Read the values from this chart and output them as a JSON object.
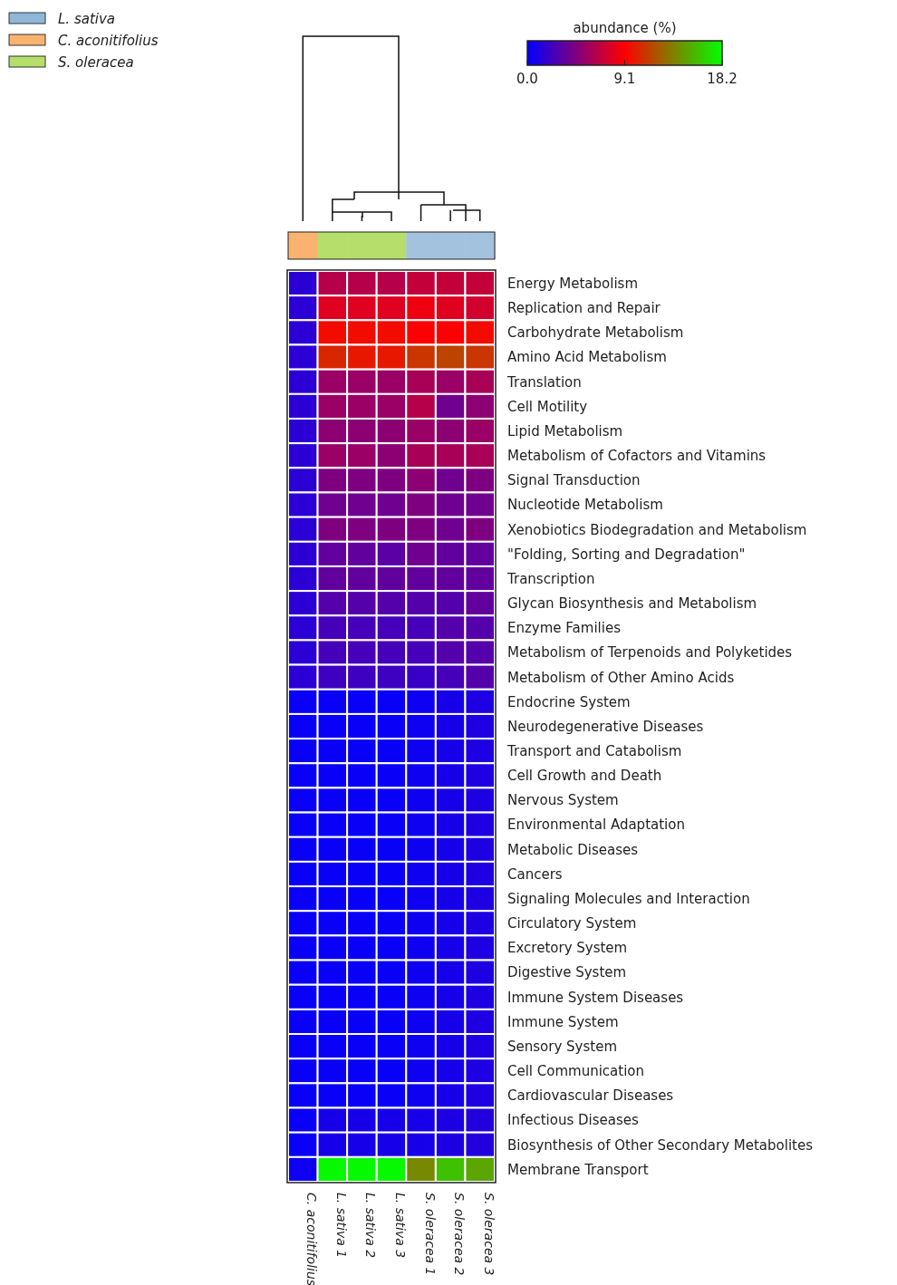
{
  "chart_data": {
    "type": "heatmap",
    "categories": [
      "C. aconitifolius",
      "L. sativa 1",
      "L. sativa 2",
      "L. sativa 3",
      "S. oleracea 1",
      "S. oleracea 2",
      "S. oleracea 3"
    ],
    "colors": [
      "#f9b36e",
      "#b5de6a",
      "#b5de6a",
      "#b5de6a",
      "#a3c2de",
      "#a3c2de",
      "#a3c2de"
    ],
    "annotations": [
      "L. sativa",
      "C. aconitifolius",
      "S. oleracea"
    ],
    "y_categories": [
      "Energy Metabolism",
      "Replication and Repair",
      "Carbohydrate Metabolism",
      "Amino Acid Metabolism",
      "Translation",
      "Cell Motility",
      "Lipid Metabolism",
      "Metabolism of Cofactors and Vitamins",
      "Signal Transduction",
      "Nucleotide Metabolism",
      "Xenobiotics Biodegradation and Metabolism",
      "\"Folding, Sorting and Degradation\"",
      "Transcription",
      "Glycan Biosynthesis and Metabolism",
      "Enzyme Families",
      "Metabolism of Terpenoids and Polyketides",
      "Metabolism of Other Amino Acids",
      "Endocrine System",
      "Neurodegenerative Diseases",
      "Transport and Catabolism",
      "Cell Growth and Death",
      "Nervous System",
      "Environmental Adaptation",
      "Metabolic Diseases",
      "Cancers",
      "Signaling Molecules and Interaction",
      "Circulatory System",
      "Excretory System",
      "Digestive System",
      "Immune System Diseases",
      "Immune System",
      "Sensory System",
      "Cell Communication",
      "Cardiovascular Diseases",
      "Infectious Diseases",
      "Biosynthesis of Other Secondary Metabolites",
      "Membrane Transport"
    ],
    "cells": [
      [
        1.5,
        6.5,
        6.5,
        6.5,
        7,
        7,
        7
      ],
      [
        1.5,
        8,
        8,
        8,
        8.5,
        8,
        7.5
      ],
      [
        1.5,
        9.5,
        9.5,
        9.5,
        9,
        9,
        9.5
      ],
      [
        1.5,
        10.5,
        10,
        10,
        11,
        11.5,
        11
      ],
      [
        1.5,
        5.5,
        5.5,
        5.5,
        6,
        5.5,
        6
      ],
      [
        1.5,
        5.5,
        5.5,
        5.5,
        6.5,
        4,
        5
      ],
      [
        1.5,
        5,
        5,
        5,
        5.5,
        5,
        5.5
      ],
      [
        1.5,
        5.5,
        5.5,
        5,
        6,
        6,
        6
      ],
      [
        1.5,
        4.5,
        4.5,
        4.5,
        5,
        4,
        4.5
      ],
      [
        1.5,
        4,
        4,
        4,
        4.5,
        4,
        4
      ],
      [
        1.5,
        4.5,
        4.5,
        4.5,
        4.5,
        4,
        4.5
      ],
      [
        1.5,
        3.5,
        3.5,
        3.2,
        4,
        3.5,
        3.5
      ],
      [
        1.5,
        3.5,
        3.5,
        3.5,
        3.5,
        3.5,
        3.5
      ],
      [
        1.5,
        3,
        3,
        3,
        3,
        3,
        3.5
      ],
      [
        1.5,
        2.5,
        2.5,
        2.5,
        2.5,
        3,
        3
      ],
      [
        1.5,
        2.5,
        2.5,
        2.5,
        2.5,
        3,
        3
      ],
      [
        1.5,
        2.2,
        2.2,
        2.2,
        2,
        2.5,
        3
      ],
      [
        0.3,
        0.3,
        0.3,
        0.3,
        0.5,
        0.8,
        1
      ],
      [
        0.3,
        0.3,
        0.3,
        0.3,
        0.5,
        0.8,
        1
      ],
      [
        0.3,
        0.3,
        0.3,
        0.3,
        0.5,
        0.8,
        1
      ],
      [
        0.3,
        0.3,
        0.3,
        0.3,
        0.5,
        0.8,
        1
      ],
      [
        0.3,
        0.3,
        0.3,
        0.3,
        0.5,
        0.8,
        1
      ],
      [
        0.3,
        0.3,
        0.3,
        0.3,
        0.5,
        0.8,
        1
      ],
      [
        0.3,
        0.3,
        0.3,
        0.3,
        0.5,
        0.8,
        1
      ],
      [
        0.3,
        0.3,
        0.3,
        0.3,
        0.5,
        0.8,
        1
      ],
      [
        0.3,
        0.3,
        0.3,
        0.3,
        0.5,
        0.8,
        1
      ],
      [
        0.3,
        0.3,
        0.3,
        0.3,
        0.5,
        0.8,
        1
      ],
      [
        0.3,
        0.3,
        0.3,
        0.3,
        0.5,
        0.8,
        1
      ],
      [
        0.3,
        0.3,
        0.3,
        0.3,
        0.5,
        0.8,
        1
      ],
      [
        0.3,
        0.3,
        0.3,
        0.3,
        0.5,
        0.8,
        1
      ],
      [
        0.3,
        0.3,
        0.3,
        0.3,
        0.5,
        0.8,
        1
      ],
      [
        0.3,
        0.3,
        0.3,
        0.3,
        0.5,
        0.8,
        1
      ],
      [
        0.3,
        0.3,
        0.3,
        0.3,
        0.5,
        0.8,
        1
      ],
      [
        0.3,
        0.3,
        0.3,
        0.3,
        0.5,
        0.8,
        1
      ],
      [
        0.3,
        0.8,
        0.8,
        0.8,
        0.8,
        1,
        1.2
      ],
      [
        0.3,
        0.8,
        0.8,
        0.8,
        0.8,
        1,
        1.2
      ],
      [
        0.5,
        18,
        18,
        18,
        14,
        16,
        15
      ]
    ],
    "clabel": "abundance (%)",
    "clim": [
      0,
      18.2
    ],
    "cticks": [
      {
        "value": 0,
        "label": "0.0"
      },
      {
        "value": 9.1,
        "label": "9.1"
      },
      {
        "value": 18.2,
        "label": "18.2"
      }
    ]
  }
}
